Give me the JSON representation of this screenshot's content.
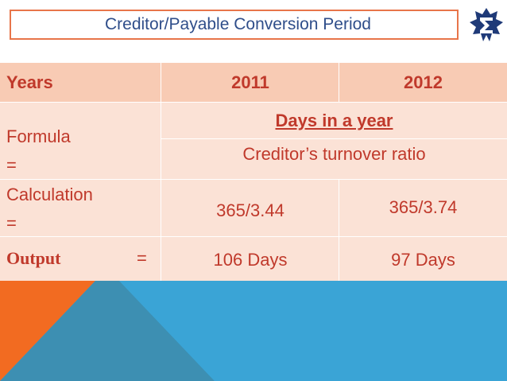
{
  "title": "Creditor/Payable Conversion  Period",
  "table": {
    "years_label": "Years",
    "year_2011": "2011",
    "year_2012": "2012",
    "formula_label": "Formula",
    "formula_eq": "=",
    "formula_numerator": "Days in a year",
    "formula_denominator": "Creditor’s turnover ratio",
    "calculation_label": "Calculation",
    "calculation_eq": "=",
    "calc_2011": "365/3.44",
    "calc_2012": "365/3.74",
    "output_label": "Output",
    "output_eq": "=",
    "output_2011": "106 Days",
    "output_2012": "97 Days"
  },
  "colors": {
    "text_red": "#c0392b",
    "header_row": "#f8cbb4",
    "body_rows": "#fbe2d6",
    "title_border": "#e8754a",
    "title_text": "#2f4e8a",
    "accent_blue": "#3aa4d6",
    "accent_orange": "#f26b21",
    "accent_teal": "#3d8fb2"
  },
  "logo_icon": "sigma-star-logo-icon"
}
